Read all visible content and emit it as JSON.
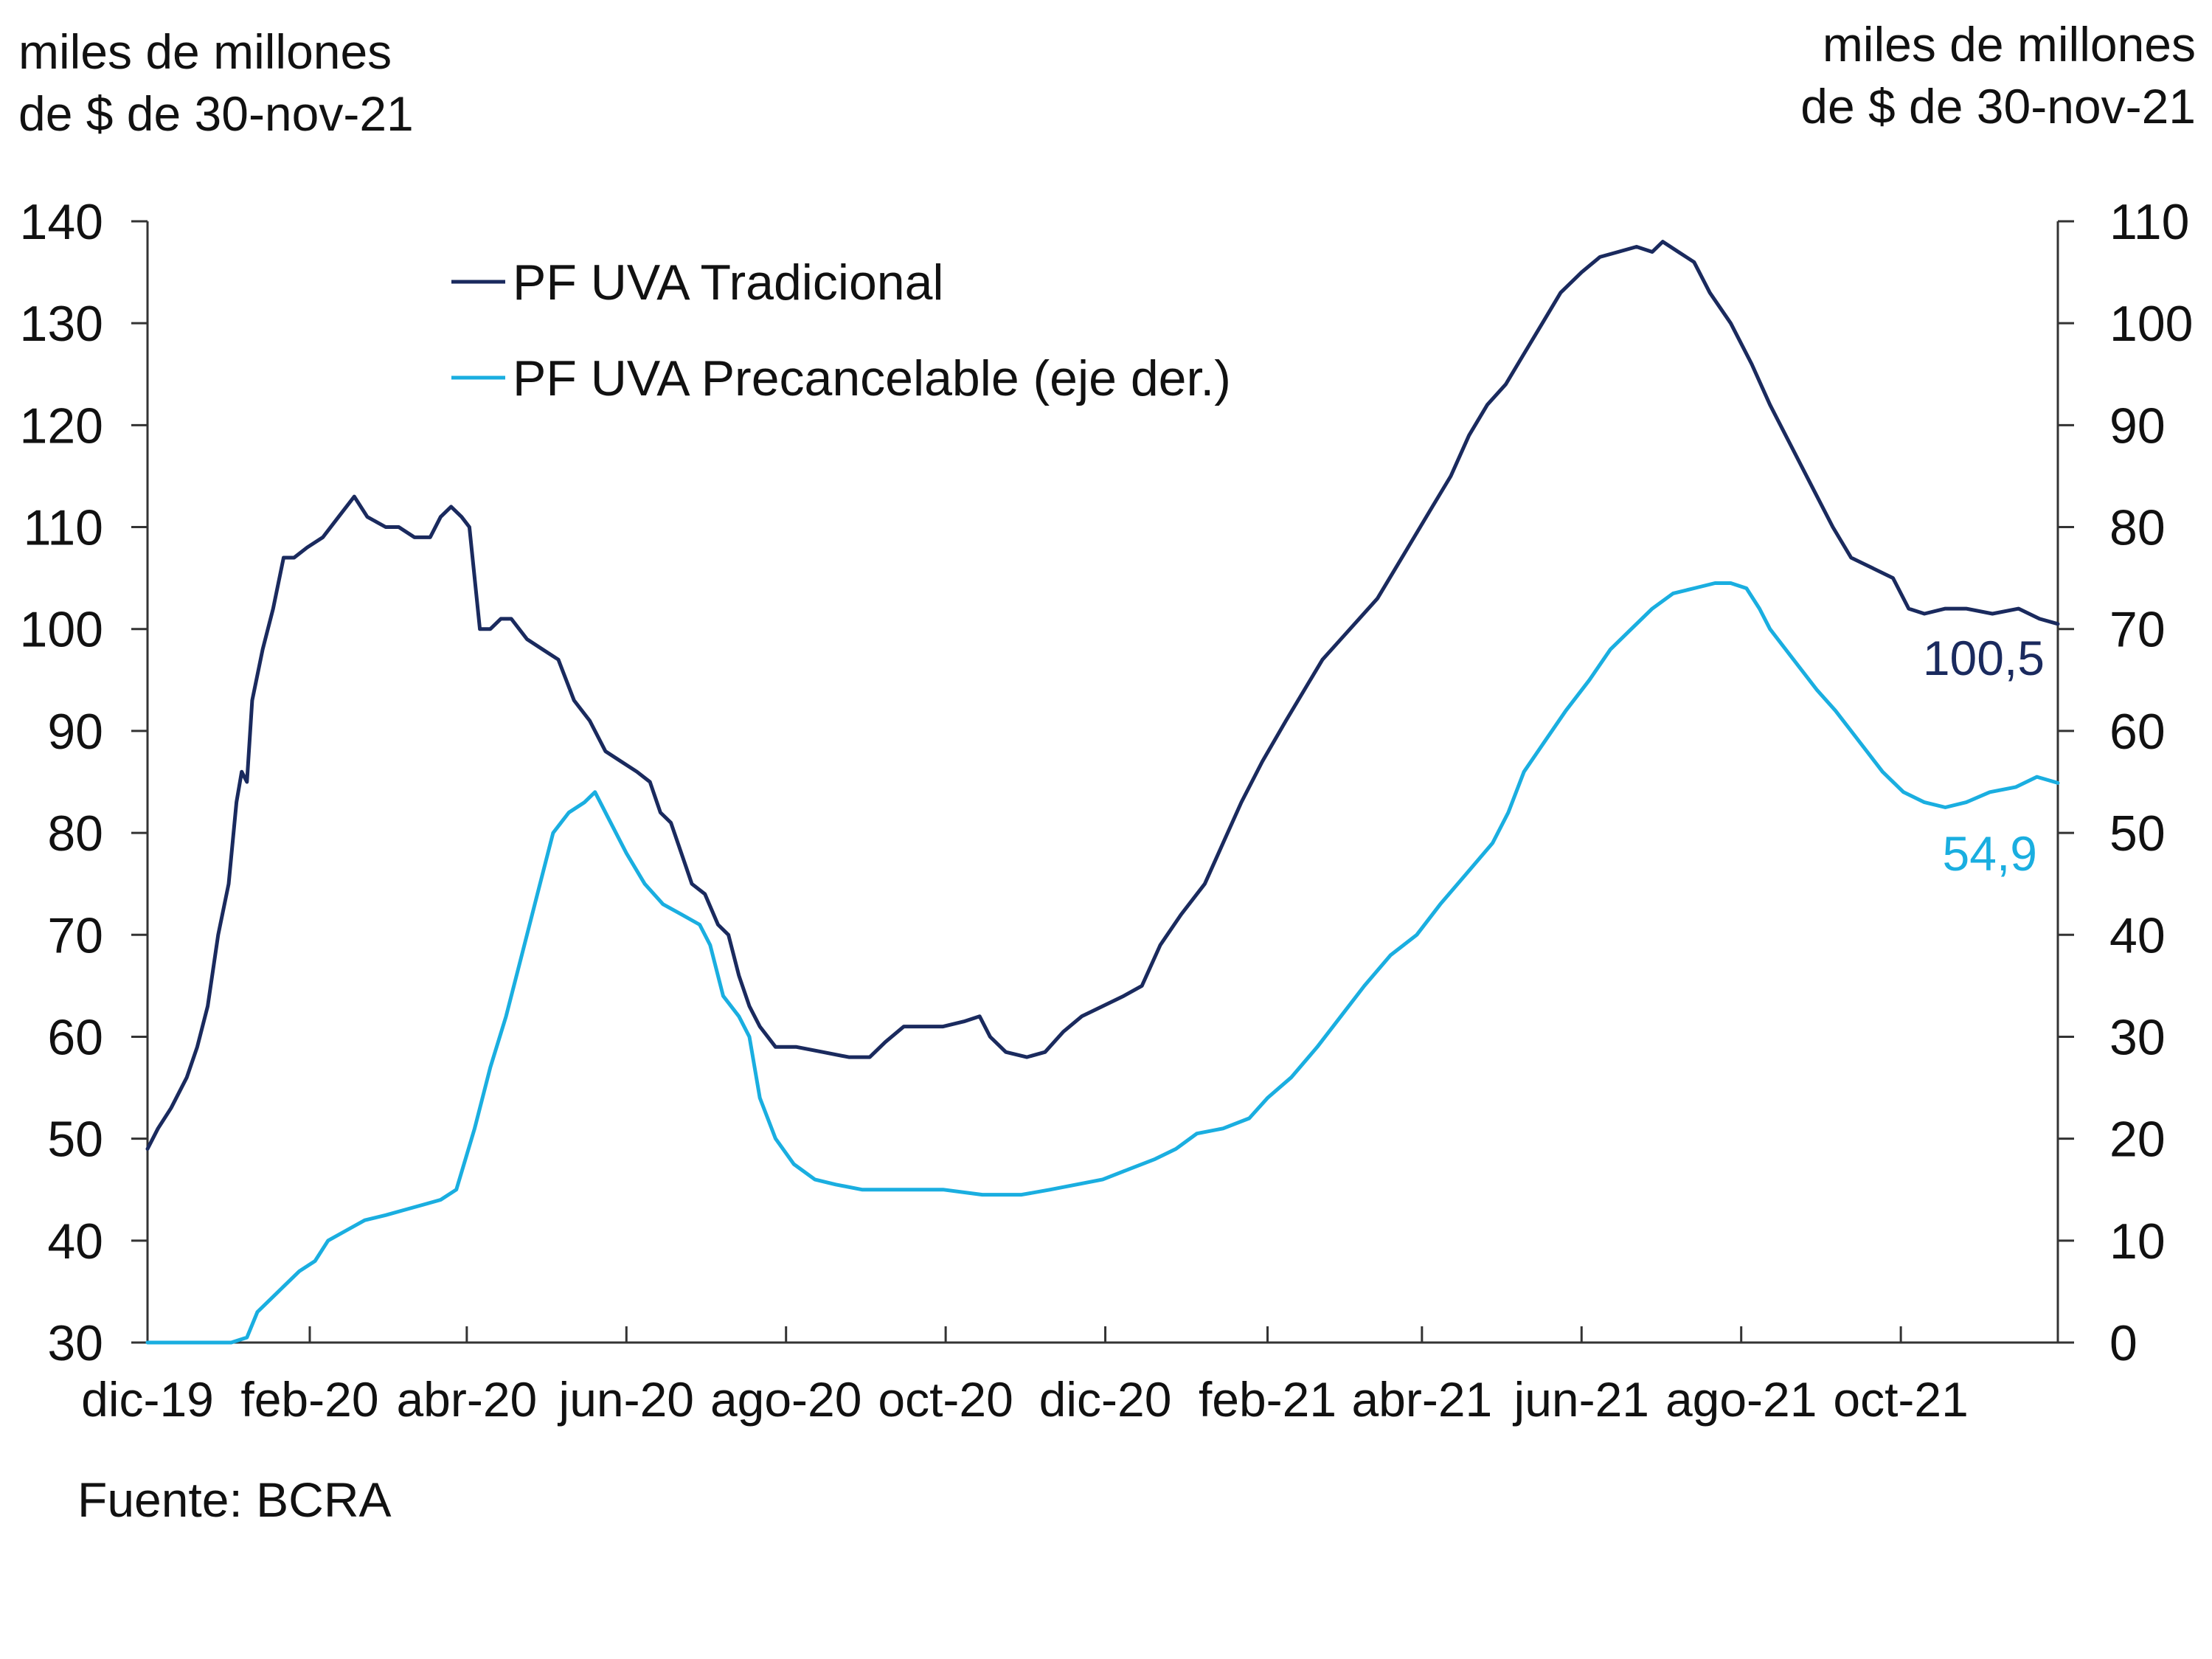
{
  "left_axis_unit": [
    "miles de millones",
    "de $ de 30-nov-21"
  ],
  "right_axis_unit": [
    "miles de millones",
    "de $ de 30-nov-21"
  ],
  "source": "Fuente: BCRA",
  "colors": {
    "tradicional": "#1a2a5e",
    "precancelable": "#1aaee0",
    "axis": "#333333"
  },
  "chart_data": {
    "type": "line",
    "title": "",
    "x_tick_labels": [
      "dic-19",
      "feb-20",
      "abr-20",
      "jun-20",
      "ago-20",
      "oct-20",
      "dic-20",
      "feb-21",
      "abr-21",
      "jun-21",
      "ago-21",
      "oct-21"
    ],
    "x_range": [
      "2019-12-01",
      "2021-11-30"
    ],
    "y_left": {
      "range": [
        30,
        140
      ],
      "ticks": [
        30,
        40,
        50,
        60,
        70,
        80,
        90,
        100,
        110,
        120,
        130,
        140
      ]
    },
    "y_right": {
      "range": [
        0,
        110
      ],
      "ticks": [
        0,
        10,
        20,
        30,
        40,
        50,
        60,
        70,
        80,
        90,
        100,
        110
      ]
    },
    "legend_position": "top-left",
    "end_labels": {
      "tradicional": "100,5",
      "precancelable": "54,9"
    },
    "series": [
      {
        "name": "PF UVA Tradicional",
        "axis": "left",
        "color": "#1a2a5e",
        "points": [
          [
            "2019-12-01",
            49
          ],
          [
            "2019-12-05",
            51
          ],
          [
            "2019-12-10",
            53
          ],
          [
            "2019-12-16",
            56
          ],
          [
            "2019-12-20",
            59
          ],
          [
            "2019-12-24",
            63
          ],
          [
            "2019-12-28",
            70
          ],
          [
            "2020-01-01",
            75
          ],
          [
            "2020-01-04",
            83
          ],
          [
            "2020-01-06",
            86
          ],
          [
            "2020-01-08",
            85
          ],
          [
            "2020-01-10",
            93
          ],
          [
            "2020-01-14",
            98
          ],
          [
            "2020-01-18",
            102
          ],
          [
            "2020-01-22",
            107
          ],
          [
            "2020-01-26",
            107
          ],
          [
            "2020-01-31",
            108
          ],
          [
            "2020-02-06",
            109
          ],
          [
            "2020-02-12",
            111
          ],
          [
            "2020-02-18",
            113
          ],
          [
            "2020-02-23",
            111
          ],
          [
            "2020-03-01",
            110
          ],
          [
            "2020-03-06",
            110
          ],
          [
            "2020-03-12",
            109
          ],
          [
            "2020-03-18",
            109
          ],
          [
            "2020-03-22",
            111
          ],
          [
            "2020-03-26",
            112
          ],
          [
            "2020-03-30",
            111
          ],
          [
            "2020-04-02",
            110
          ],
          [
            "2020-04-06",
            100
          ],
          [
            "2020-04-10",
            100
          ],
          [
            "2020-04-14",
            101
          ],
          [
            "2020-04-18",
            101
          ],
          [
            "2020-04-24",
            99
          ],
          [
            "2020-04-30",
            98
          ],
          [
            "2020-05-06",
            97
          ],
          [
            "2020-05-12",
            93
          ],
          [
            "2020-05-18",
            91
          ],
          [
            "2020-05-24",
            88
          ],
          [
            "2020-05-30",
            87
          ],
          [
            "2020-06-05",
            86
          ],
          [
            "2020-06-10",
            85
          ],
          [
            "2020-06-14",
            82
          ],
          [
            "2020-06-18",
            81
          ],
          [
            "2020-06-22",
            78
          ],
          [
            "2020-06-26",
            75
          ],
          [
            "2020-07-01",
            74
          ],
          [
            "2020-07-06",
            71
          ],
          [
            "2020-07-10",
            70
          ],
          [
            "2020-07-14",
            66
          ],
          [
            "2020-07-18",
            63
          ],
          [
            "2020-07-22",
            61
          ],
          [
            "2020-07-28",
            59
          ],
          [
            "2020-08-05",
            59
          ],
          [
            "2020-08-15",
            58.5
          ],
          [
            "2020-08-25",
            58
          ],
          [
            "2020-09-02",
            58
          ],
          [
            "2020-09-08",
            59.5
          ],
          [
            "2020-09-15",
            61
          ],
          [
            "2020-09-22",
            61
          ],
          [
            "2020-09-30",
            61
          ],
          [
            "2020-10-08",
            61.5
          ],
          [
            "2020-10-14",
            62
          ],
          [
            "2020-10-18",
            60
          ],
          [
            "2020-10-24",
            58.5
          ],
          [
            "2020-11-01",
            58
          ],
          [
            "2020-11-08",
            58.5
          ],
          [
            "2020-11-15",
            60.5
          ],
          [
            "2020-11-22",
            62
          ],
          [
            "2020-11-30",
            63
          ],
          [
            "2020-12-08",
            64
          ],
          [
            "2020-12-15",
            65
          ],
          [
            "2020-12-22",
            69
          ],
          [
            "2020-12-30",
            72
          ],
          [
            "2021-01-08",
            75
          ],
          [
            "2021-01-15",
            79
          ],
          [
            "2021-01-22",
            83
          ],
          [
            "2021-01-30",
            87
          ],
          [
            "2021-02-08",
            91
          ],
          [
            "2021-02-15",
            94
          ],
          [
            "2021-02-22",
            97
          ],
          [
            "2021-03-01",
            99
          ],
          [
            "2021-03-08",
            101
          ],
          [
            "2021-03-15",
            103
          ],
          [
            "2021-03-22",
            106
          ],
          [
            "2021-03-29",
            109
          ],
          [
            "2021-04-05",
            112
          ],
          [
            "2021-04-12",
            115
          ],
          [
            "2021-04-19",
            119
          ],
          [
            "2021-04-26",
            122
          ],
          [
            "2021-05-03",
            124
          ],
          [
            "2021-05-10",
            127
          ],
          [
            "2021-05-17",
            130
          ],
          [
            "2021-05-24",
            133
          ],
          [
            "2021-06-01",
            135
          ],
          [
            "2021-06-08",
            136.5
          ],
          [
            "2021-06-15",
            137
          ],
          [
            "2021-06-22",
            137.5
          ],
          [
            "2021-06-28",
            137
          ],
          [
            "2021-07-02",
            138
          ],
          [
            "2021-07-08",
            137
          ],
          [
            "2021-07-14",
            136
          ],
          [
            "2021-07-20",
            133
          ],
          [
            "2021-07-28",
            130
          ],
          [
            "2021-08-05",
            126
          ],
          [
            "2021-08-12",
            122
          ],
          [
            "2021-08-20",
            118
          ],
          [
            "2021-08-28",
            114
          ],
          [
            "2021-09-05",
            110
          ],
          [
            "2021-09-12",
            107
          ],
          [
            "2021-09-20",
            106
          ],
          [
            "2021-09-28",
            105
          ],
          [
            "2021-10-04",
            102
          ],
          [
            "2021-10-10",
            101.5
          ],
          [
            "2021-10-18",
            102
          ],
          [
            "2021-10-26",
            102
          ],
          [
            "2021-11-05",
            101.5
          ],
          [
            "2021-11-15",
            102
          ],
          [
            "2021-11-23",
            101
          ],
          [
            "2021-11-30",
            100.5
          ]
        ]
      },
      {
        "name": "PF UVA Precancelable (eje der.)",
        "axis": "right",
        "color": "#1aaee0",
        "points": [
          [
            "2019-12-01",
            0
          ],
          [
            "2019-12-20",
            0
          ],
          [
            "2020-01-02",
            0
          ],
          [
            "2020-01-08",
            0.5
          ],
          [
            "2020-01-12",
            3
          ],
          [
            "2020-01-20",
            5
          ],
          [
            "2020-01-28",
            7
          ],
          [
            "2020-02-03",
            8
          ],
          [
            "2020-02-08",
            10
          ],
          [
            "2020-02-15",
            11
          ],
          [
            "2020-02-22",
            12
          ],
          [
            "2020-03-01",
            12.5
          ],
          [
            "2020-03-08",
            13
          ],
          [
            "2020-03-15",
            13.5
          ],
          [
            "2020-03-22",
            14
          ],
          [
            "2020-03-28",
            15
          ],
          [
            "2020-04-04",
            21
          ],
          [
            "2020-04-10",
            27
          ],
          [
            "2020-04-16",
            32
          ],
          [
            "2020-04-22",
            38
          ],
          [
            "2020-04-28",
            44
          ],
          [
            "2020-05-04",
            50
          ],
          [
            "2020-05-10",
            52
          ],
          [
            "2020-05-16",
            53
          ],
          [
            "2020-05-20",
            54
          ],
          [
            "2020-05-26",
            51
          ],
          [
            "2020-06-01",
            48
          ],
          [
            "2020-06-08",
            45
          ],
          [
            "2020-06-15",
            43
          ],
          [
            "2020-06-22",
            42
          ],
          [
            "2020-06-29",
            41
          ],
          [
            "2020-07-03",
            39
          ],
          [
            "2020-07-08",
            34
          ],
          [
            "2020-07-14",
            32
          ],
          [
            "2020-07-18",
            30
          ],
          [
            "2020-07-22",
            24
          ],
          [
            "2020-07-28",
            20
          ],
          [
            "2020-08-04",
            17.5
          ],
          [
            "2020-08-12",
            16
          ],
          [
            "2020-08-20",
            15.5
          ],
          [
            "2020-08-30",
            15
          ],
          [
            "2020-09-15",
            15
          ],
          [
            "2020-09-30",
            15
          ],
          [
            "2020-10-15",
            14.5
          ],
          [
            "2020-10-30",
            14.5
          ],
          [
            "2020-11-10",
            15
          ],
          [
            "2020-11-20",
            15.5
          ],
          [
            "2020-11-30",
            16
          ],
          [
            "2020-12-10",
            17
          ],
          [
            "2020-12-20",
            18
          ],
          [
            "2020-12-28",
            19
          ],
          [
            "2021-01-05",
            20.5
          ],
          [
            "2021-01-15",
            21
          ],
          [
            "2021-01-25",
            22
          ],
          [
            "2021-02-01",
            24
          ],
          [
            "2021-02-10",
            26
          ],
          [
            "2021-02-20",
            29
          ],
          [
            "2021-03-01",
            32
          ],
          [
            "2021-03-10",
            35
          ],
          [
            "2021-03-20",
            38
          ],
          [
            "2021-03-30",
            40
          ],
          [
            "2021-04-08",
            43
          ],
          [
            "2021-04-18",
            46
          ],
          [
            "2021-04-28",
            49
          ],
          [
            "2021-05-04",
            52
          ],
          [
            "2021-05-10",
            56
          ],
          [
            "2021-05-18",
            59
          ],
          [
            "2021-05-26",
            62
          ],
          [
            "2021-06-04",
            65
          ],
          [
            "2021-06-12",
            68
          ],
          [
            "2021-06-20",
            70
          ],
          [
            "2021-06-28",
            72
          ],
          [
            "2021-07-06",
            73.5
          ],
          [
            "2021-07-14",
            74
          ],
          [
            "2021-07-22",
            74.5
          ],
          [
            "2021-07-28",
            74.5
          ],
          [
            "2021-08-03",
            74
          ],
          [
            "2021-08-08",
            72
          ],
          [
            "2021-08-12",
            70
          ],
          [
            "2021-08-18",
            68
          ],
          [
            "2021-08-24",
            66
          ],
          [
            "2021-08-30",
            64
          ],
          [
            "2021-09-06",
            62
          ],
          [
            "2021-09-12",
            60
          ],
          [
            "2021-09-18",
            58
          ],
          [
            "2021-09-24",
            56
          ],
          [
            "2021-10-02",
            54
          ],
          [
            "2021-10-10",
            53
          ],
          [
            "2021-10-18",
            52.5
          ],
          [
            "2021-10-26",
            53
          ],
          [
            "2021-11-04",
            54
          ],
          [
            "2021-11-14",
            54.5
          ],
          [
            "2021-11-22",
            55.5
          ],
          [
            "2021-11-30",
            54.9
          ]
        ]
      }
    ]
  }
}
